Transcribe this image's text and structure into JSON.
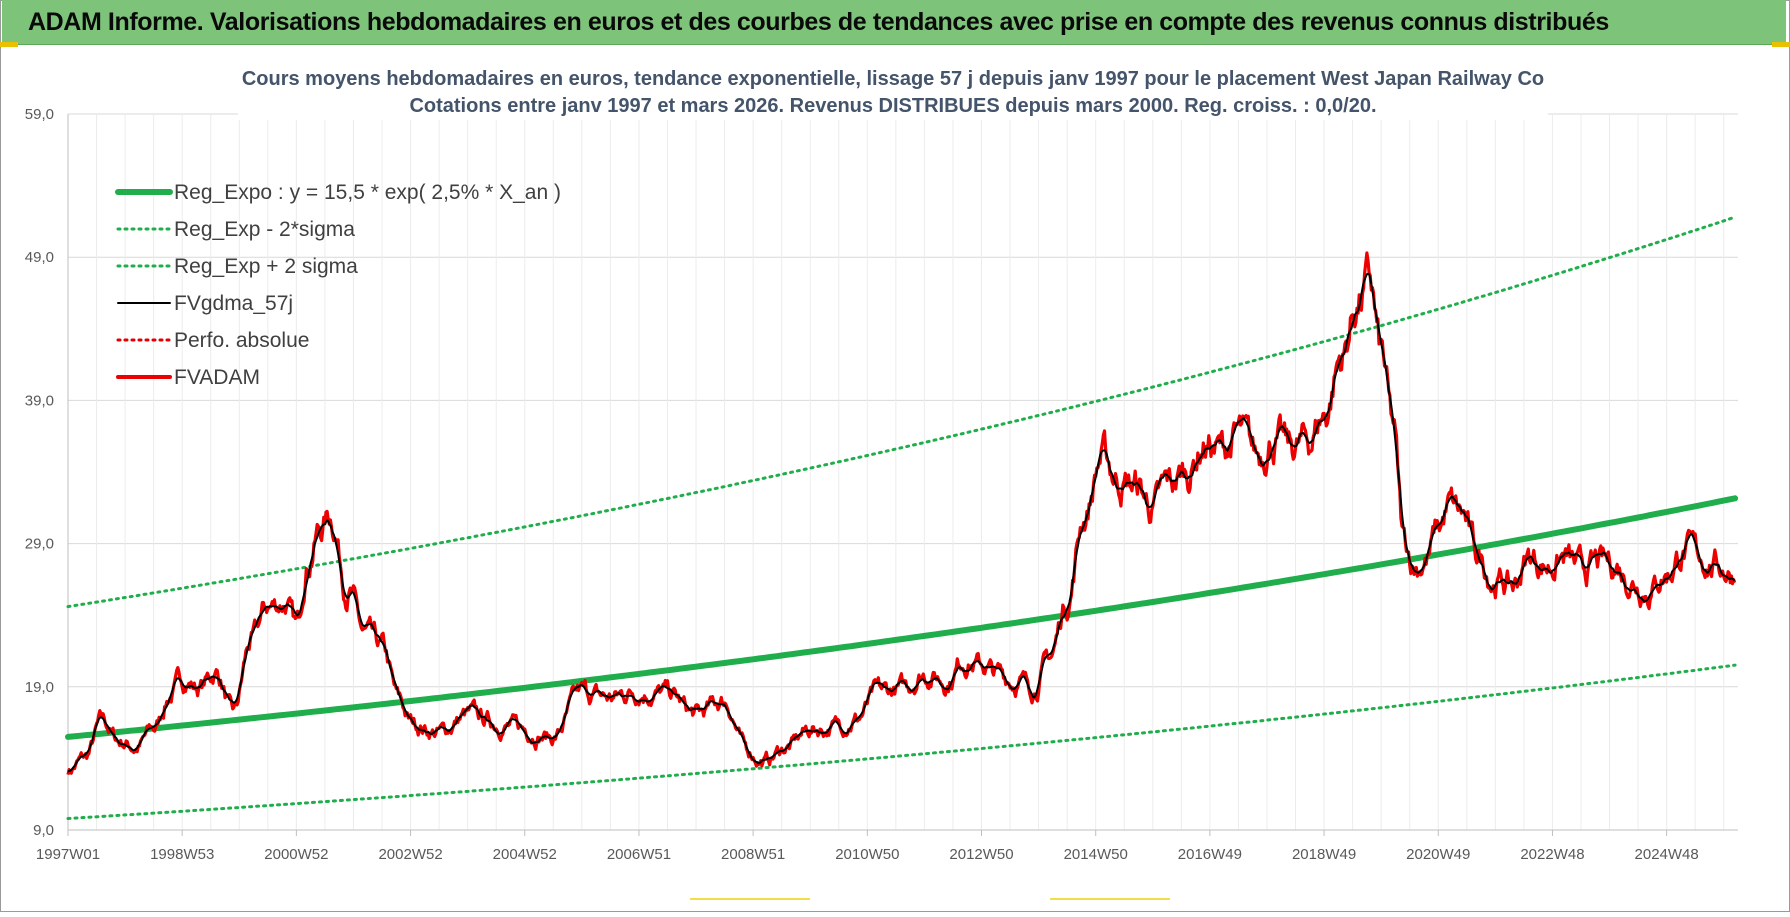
{
  "header": {
    "title": "ADAM Informe. Valorisations hebdomadaires en euros et des courbes de tendances avec prise en compte des revenus connus distribués"
  },
  "chart_data": {
    "type": "line",
    "title": "Cours moyens hebdomadaires en euros, tendance exponentielle, lissage 57 j depuis janv 1997  pour le placement West Japan Railway Co",
    "subtitle": "Cotations entre janv 1997 et mars 2026. Revenus DISTRIBUES depuis mars 2000.  Reg. croiss. : 0,0/20.",
    "xlabel": "",
    "ylabel": "",
    "ylim": [
      9,
      59
    ],
    "xlim": [
      1997.0,
      2026.25
    ],
    "y_ticks": [
      "59,0",
      "49,0",
      "39,0",
      "29,0",
      "19,0",
      "9,0"
    ],
    "y_tick_values": [
      59,
      49,
      39,
      29,
      19,
      9
    ],
    "x_ticks": [
      "1997W01",
      "1998W53",
      "2000W52",
      "2002W52",
      "2004W52",
      "2006W51",
      "2008W51",
      "2010W50",
      "2012W50",
      "2014W50",
      "2016W49",
      "2018W49",
      "2020W49",
      "2022W48",
      "2024W48"
    ],
    "x_tick_values": [
      1997.0,
      1999.0,
      2001.0,
      2003.0,
      2005.0,
      2007.0,
      2009.0,
      2011.0,
      2013.0,
      2015.0,
      2017.0,
      2019.0,
      2021.0,
      2023.0,
      2025.0
    ],
    "grid": true,
    "legend_position": "top-left",
    "series": [
      {
        "name": "Reg_Expo : y = 15,5 * exp( 2,5% *  X_an )",
        "style": "solid-thick",
        "color": "#1fae4b",
        "kind": "exp",
        "base": 15.5,
        "rate": 0.025
      },
      {
        "name": "Reg_Exp - 2*sigma",
        "style": "dotted",
        "color": "#1fae4b",
        "kind": "exp",
        "base": 9.8,
        "rate": 0.0253
      },
      {
        "name": "Reg_Exp + 2 sigma",
        "style": "dotted",
        "color": "#1fae4b",
        "kind": "exp",
        "base": 24.6,
        "rate": 0.0255
      },
      {
        "name": "FVgdma_57j",
        "style": "solid",
        "color": "#000000",
        "kind": "smooth"
      },
      {
        "name": "Perfo. absolue",
        "style": "dotted",
        "color": "#e00000",
        "kind": "none"
      },
      {
        "name": "FVADAM",
        "style": "solid-thick",
        "color": "#ee0000",
        "kind": "data",
        "x": [
          1997.0,
          1997.3,
          1997.6,
          1997.9,
          1998.2,
          1998.5,
          1998.8,
          1999.0,
          1999.3,
          1999.6,
          1999.9,
          2000.2,
          2000.5,
          2000.8,
          2001.0,
          2001.2,
          2001.4,
          2001.6,
          2001.9,
          2002.2,
          2002.5,
          2002.8,
          2003.0,
          2003.5,
          2004.0,
          2004.5,
          2005.0,
          2005.5,
          2006.0,
          2006.5,
          2007.0,
          2007.5,
          2008.0,
          2008.5,
          2008.9,
          2009.2,
          2009.6,
          2010.0,
          2010.4,
          2010.8,
          2011.2,
          2011.6,
          2012.0,
          2012.4,
          2012.7,
          2013.0,
          2013.3,
          2013.6,
          2013.9,
          2014.2,
          2014.5,
          2014.8,
          2015.1,
          2015.4,
          2015.7,
          2016.0,
          2016.3,
          2016.6,
          2016.9,
          2017.2,
          2017.5,
          2017.8,
          2018.1,
          2018.4,
          2018.7,
          2019.0,
          2019.3,
          2019.6,
          2019.8,
          2020.0,
          2020.2,
          2020.4,
          2020.6,
          2020.8,
          2021.0,
          2021.2,
          2021.4,
          2021.7,
          2022.0,
          2022.3,
          2022.6,
          2022.9,
          2023.2,
          2023.5,
          2023.8,
          2024.1,
          2024.4,
          2024.7,
          2025.0,
          2025.3,
          2025.6,
          2025.9,
          2026.2
        ],
        "y": [
          13.2,
          14.0,
          16.5,
          15.2,
          14.8,
          16.0,
          18.5,
          19.5,
          19.0,
          20.0,
          17.0,
          22.0,
          24.5,
          25.0,
          23.0,
          28.0,
          30.0,
          31.0,
          26.0,
          22.5,
          21.5,
          18.0,
          16.5,
          15.8,
          17.0,
          16.5,
          16.0,
          15.5,
          18.5,
          18.2,
          18.8,
          18.5,
          17.0,
          18.0,
          14.5,
          13.8,
          14.8,
          16.0,
          16.2,
          16.8,
          18.5,
          18.8,
          20.0,
          19.5,
          21.0,
          20.5,
          19.8,
          19.5,
          19.0,
          21.0,
          25.0,
          31.0,
          35.0,
          33.5,
          33.0,
          31.5,
          33.0,
          34.0,
          36.0,
          35.5,
          36.5,
          35.0,
          36.5,
          35.5,
          36.0,
          38.0,
          42.0,
          46.0,
          47.0,
          42.0,
          37.0,
          29.0,
          27.5,
          28.0,
          30.0,
          31.5,
          31.0,
          28.0,
          26.5,
          26.0,
          28.0,
          27.5,
          28.0,
          27.0,
          27.5,
          27.5,
          26.5,
          26.0,
          27.0,
          28.5,
          28.0,
          27.5,
          27.0
        ]
      }
    ]
  }
}
